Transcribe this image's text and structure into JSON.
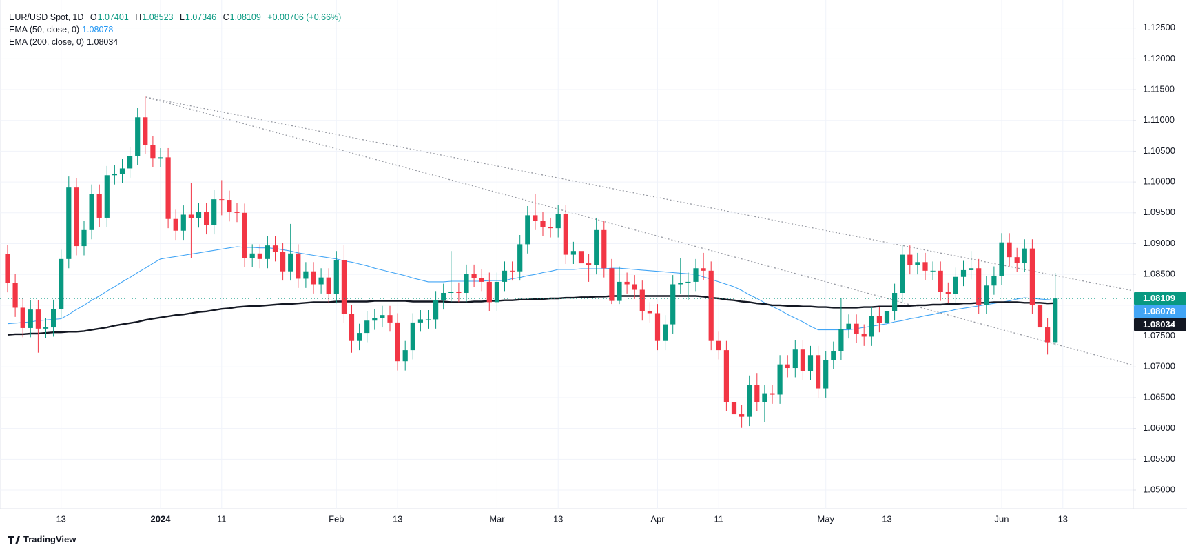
{
  "header": {
    "title": "EUR/USD Spot, 1D",
    "ohlc_keys": [
      "O",
      "H",
      "L",
      "C"
    ],
    "change": "+0.00706 (+0.66%)"
  },
  "footer": {
    "brand": "TradingView"
  },
  "chart_data": {
    "type": "candlestick",
    "up_color": "#089981",
    "down_color": "#f23645",
    "ylim": [
      1.04698,
      1.12955
    ],
    "yticks": [
      {
        "value": 1.05,
        "label": "1.05000"
      },
      {
        "value": 1.055,
        "label": "1.05500"
      },
      {
        "value": 1.06,
        "label": "1.06000"
      },
      {
        "value": 1.065,
        "label": "1.06500"
      },
      {
        "value": 1.07,
        "label": "1.07000"
      },
      {
        "value": 1.075,
        "label": "1.07500"
      },
      {
        "value": 1.08,
        "label": "1.08000"
      },
      {
        "value": 1.085,
        "label": "1.08500"
      },
      {
        "value": 1.09,
        "label": "1.09000"
      },
      {
        "value": 1.095,
        "label": "1.09500"
      },
      {
        "value": 1.1,
        "label": "1.10000"
      },
      {
        "value": 1.105,
        "label": "1.10500"
      },
      {
        "value": 1.11,
        "label": "1.11000"
      },
      {
        "value": 1.115,
        "label": "1.11500"
      },
      {
        "value": 1.12,
        "label": "1.12000"
      },
      {
        "value": 1.125,
        "label": "1.12500"
      }
    ],
    "grid": true,
    "categories": [
      null,
      null,
      null,
      null,
      null,
      null,
      null,
      "13",
      null,
      null,
      null,
      null,
      null,
      null,
      null,
      null,
      null,
      null,
      null,
      null,
      "2024",
      null,
      null,
      null,
      null,
      null,
      null,
      null,
      "11",
      null,
      null,
      null,
      null,
      null,
      null,
      null,
      null,
      null,
      null,
      null,
      null,
      null,
      null,
      "Feb",
      null,
      null,
      null,
      null,
      null,
      null,
      null,
      "13",
      null,
      null,
      null,
      null,
      null,
      null,
      null,
      null,
      null,
      null,
      null,
      null,
      "Mar",
      null,
      null,
      null,
      null,
      null,
      null,
      null,
      "13",
      null,
      null,
      null,
      null,
      null,
      null,
      null,
      null,
      null,
      null,
      null,
      null,
      "Apr",
      null,
      null,
      null,
      null,
      null,
      null,
      null,
      "11",
      null,
      null,
      null,
      null,
      null,
      null,
      null,
      null,
      null,
      null,
      null,
      null,
      null,
      "May",
      null,
      null,
      null,
      null,
      null,
      null,
      null,
      "13",
      null,
      null,
      null,
      null,
      null,
      null,
      null,
      null,
      null,
      null,
      null,
      null,
      null,
      null,
      "Jun",
      null,
      null,
      null,
      null,
      null,
      null,
      null,
      "13"
    ],
    "open": [
      1.0883,
      1.0836,
      1.0796,
      1.0763,
      1.0793,
      1.0762,
      1.0764,
      1.0794,
      1.0875,
      1.0991,
      1.0896,
      1.0922,
      1.0981,
      1.0942,
      1.1011,
      1.1013,
      1.1022,
      1.1042,
      1.1105,
      1.106,
      1.1039,
      1.104,
      1.094,
      1.0921,
      1.0947,
      1.0941,
      1.0951,
      1.093,
      1.0972,
      1.0971,
      1.0951,
      1.095,
      1.0877,
      1.0884,
      1.0875,
      1.0897,
      1.0886,
      1.0855,
      1.0884,
      1.0843,
      1.0855,
      1.0834,
      1.0845,
      1.0818,
      1.0873,
      1.0786,
      1.0742,
      1.0755,
      1.0775,
      1.0779,
      1.0784,
      1.0772,
      1.0709,
      1.0727,
      1.0772,
      1.0777,
      1.0777,
      1.0808,
      1.082,
      1.0822,
      1.082,
      1.0851,
      1.0844,
      1.0838,
      1.0805,
      1.0838,
      1.0856,
      1.0855,
      1.0899,
      1.0946,
      1.0937,
      1.0927,
      1.0925,
      1.0948,
      1.0882,
      1.0888,
      1.0868,
      1.0865,
      1.0922,
      1.086,
      1.0807,
      1.0838,
      1.0834,
      1.0825,
      1.079,
      1.0787,
      1.0742,
      1.0769,
      1.0834,
      1.0836,
      1.0838,
      1.086,
      1.0856,
      1.0742,
      1.0727,
      1.0643,
      1.0623,
      1.0619,
      1.0671,
      1.0643,
      1.0656,
      1.0655,
      1.0704,
      1.0698,
      1.0728,
      1.0693,
      1.0719,
      1.0665,
      1.0711,
      1.0726,
      1.0761,
      1.077,
      1.0754,
      1.0749,
      1.0782,
      1.0771,
      1.079,
      1.082,
      1.0882,
      1.0865,
      1.087,
      1.0856,
      1.0856,
      1.0822,
      1.0818,
      1.0846,
      1.0857,
      1.086,
      1.0801,
      1.0832,
      1.0848,
      1.0902,
      1.0878,
      1.0869,
      1.0892,
      1.0801,
      1.0764,
      1.07401,
      null
    ],
    "high": [
      1.0898,
      1.0851,
      1.0811,
      1.0808,
      1.0808,
      1.0779,
      1.0809,
      1.089,
      1.1009,
      1.1006,
      1.0937,
      1.0996,
      1.0996,
      1.1026,
      1.1028,
      1.1037,
      1.1057,
      1.112,
      1.114,
      1.1075,
      1.1055,
      1.1055,
      1.0955,
      1.0962,
      1.0998,
      1.0966,
      1.0966,
      1.0987,
      1.1003,
      1.0986,
      1.0966,
      1.0965,
      1.0899,
      1.0899,
      1.0912,
      1.0912,
      1.0901,
      1.0932,
      1.0899,
      1.087,
      1.087,
      1.086,
      1.086,
      1.0888,
      1.0898,
      1.0801,
      1.077,
      1.079,
      1.0794,
      1.0799,
      1.0799,
      1.0787,
      1.0742,
      1.0787,
      1.0792,
      1.0792,
      1.0823,
      1.0835,
      1.0888,
      1.0837,
      1.0866,
      1.0866,
      1.0859,
      1.0853,
      1.0853,
      1.0871,
      1.0871,
      1.0914,
      1.0961,
      1.0981,
      1.0952,
      1.0942,
      1.0963,
      1.0963,
      1.0903,
      1.0903,
      1.0883,
      1.0942,
      1.0937,
      1.0875,
      1.0863,
      1.0853,
      1.0849,
      1.084,
      1.0805,
      1.0802,
      1.0784,
      1.0849,
      1.0876,
      1.0853,
      1.0875,
      1.0885,
      1.0871,
      1.0757,
      1.0742,
      1.0658,
      1.0638,
      1.0686,
      1.069,
      1.0671,
      1.0671,
      1.0719,
      1.0719,
      1.0743,
      1.0743,
      1.0734,
      1.0734,
      1.0726,
      1.0741,
      1.0812,
      1.0785,
      1.0785,
      1.0769,
      1.0797,
      1.0797,
      1.0805,
      1.0835,
      1.0897,
      1.0897,
      1.0885,
      1.0885,
      1.0871,
      1.0871,
      1.0837,
      1.0861,
      1.0872,
      1.0888,
      1.0875,
      1.0847,
      1.0863,
      1.0917,
      1.0917,
      1.0893,
      1.0907,
      1.0907,
      1.0816,
      1.0779,
      1.08523,
      null
    ],
    "low": [
      1.0821,
      1.0781,
      1.0748,
      1.0748,
      1.0723,
      1.0747,
      1.0749,
      1.0779,
      1.086,
      1.0881,
      1.0881,
      1.0907,
      1.0927,
      1.0927,
      1.0996,
      1.0998,
      1.1007,
      1.1027,
      1.1045,
      1.1024,
      1.1024,
      1.0925,
      1.0906,
      1.0906,
      1.0877,
      1.0926,
      1.0915,
      1.0915,
      1.0946,
      1.0936,
      1.0935,
      1.0862,
      1.0862,
      1.086,
      1.086,
      1.0871,
      1.084,
      1.084,
      1.0828,
      1.0828,
      1.0819,
      1.0819,
      1.0803,
      1.0803,
      1.0771,
      1.0723,
      1.0727,
      1.074,
      1.076,
      1.0764,
      1.0757,
      1.0694,
      1.0694,
      1.0712,
      1.0757,
      1.0762,
      1.0762,
      1.0793,
      1.0805,
      1.0805,
      1.0805,
      1.0829,
      1.0823,
      1.079,
      1.079,
      1.0823,
      1.084,
      1.084,
      1.0884,
      1.0922,
      1.0912,
      1.091,
      1.091,
      1.0867,
      1.0867,
      1.0853,
      1.0838,
      1.085,
      1.0845,
      1.0802,
      1.0802,
      1.0819,
      1.081,
      1.0775,
      1.0772,
      1.0727,
      1.0727,
      1.0754,
      1.0819,
      1.0808,
      1.0823,
      1.0841,
      1.0727,
      1.0712,
      1.0628,
      1.0608,
      1.0601,
      1.0604,
      1.0628,
      1.061,
      1.064,
      1.064,
      1.0683,
      1.0683,
      1.0678,
      1.0678,
      1.065,
      1.065,
      1.0696,
      1.0711,
      1.0746,
      1.0739,
      1.0734,
      1.0734,
      1.0756,
      1.0756,
      1.0775,
      1.0805,
      1.085,
      1.085,
      1.0841,
      1.0841,
      1.0807,
      1.0803,
      1.0803,
      1.0831,
      1.0842,
      1.0786,
      1.0786,
      1.0817,
      1.0833,
      1.0863,
      1.0854,
      1.0854,
      1.0786,
      1.0749,
      1.072,
      1.07346,
      null
    ],
    "close": [
      1.0836,
      1.0796,
      1.0763,
      1.0793,
      1.0762,
      1.0764,
      1.0794,
      1.0875,
      1.0991,
      1.0896,
      1.0922,
      1.0981,
      1.0942,
      1.1011,
      1.1013,
      1.1022,
      1.1042,
      1.1105,
      1.106,
      1.1039,
      1.104,
      1.094,
      1.0921,
      1.0947,
      1.0941,
      1.0951,
      1.093,
      1.0972,
      1.0971,
      1.0951,
      1.095,
      1.0877,
      1.0884,
      1.0875,
      1.0897,
      1.0886,
      1.0855,
      1.0884,
      1.0843,
      1.0855,
      1.0834,
      1.0845,
      1.0818,
      1.0873,
      1.0786,
      1.0742,
      1.0755,
      1.0775,
      1.0779,
      1.0784,
      1.0772,
      1.0709,
      1.0727,
      1.0772,
      1.0777,
      1.0777,
      1.0808,
      1.082,
      1.0822,
      1.082,
      1.0851,
      1.0844,
      1.0838,
      1.0805,
      1.0838,
      1.0856,
      1.0855,
      1.0899,
      1.0946,
      1.0937,
      1.0927,
      1.0925,
      1.0948,
      1.0882,
      1.0888,
      1.0868,
      1.0865,
      1.0922,
      1.086,
      1.0807,
      1.0838,
      1.0834,
      1.0825,
      1.079,
      1.0787,
      1.0742,
      1.0769,
      1.0834,
      1.0836,
      1.0838,
      1.086,
      1.0856,
      1.0742,
      1.0727,
      1.0643,
      1.0623,
      1.0619,
      1.0671,
      1.0643,
      1.0656,
      1.0655,
      1.0704,
      1.0698,
      1.0728,
      1.0693,
      1.0719,
      1.0665,
      1.0711,
      1.0726,
      1.0761,
      1.077,
      1.0754,
      1.0749,
      1.0782,
      1.0771,
      1.079,
      1.082,
      1.0882,
      1.0865,
      1.087,
      1.0856,
      1.0856,
      1.0822,
      1.0818,
      1.0846,
      1.0857,
      1.086,
      1.0801,
      1.0832,
      1.0848,
      1.0902,
      1.0878,
      1.0869,
      1.0892,
      1.0801,
      1.0764,
      1.074,
      1.08109,
      null
    ],
    "series": [
      {
        "name": "EMA (50, close, 0)",
        "color": "#42a5f5",
        "values": [
          1.077,
          1.0771,
          1.0772,
          1.0773,
          1.0775,
          1.0776,
          1.0777,
          1.0778,
          1.0785,
          1.0793,
          1.08,
          1.0808,
          1.0815,
          1.0823,
          1.083,
          1.0838,
          1.0845,
          1.0853,
          1.086,
          1.0868,
          1.0875,
          1.0877,
          1.0879,
          1.0881,
          1.0883,
          1.0885,
          1.0887,
          1.0889,
          1.0891,
          1.0893,
          1.0895,
          1.0894,
          1.0894,
          1.0893,
          1.0893,
          1.0892,
          1.089,
          1.0888,
          1.0885,
          1.0883,
          1.0881,
          1.0879,
          1.0877,
          1.0875,
          1.0872,
          1.087,
          1.0867,
          1.0864,
          1.086,
          1.0857,
          1.0854,
          1.0851,
          1.0848,
          1.0844,
          1.0841,
          1.0838,
          1.0838,
          1.0838,
          1.0839,
          1.0839,
          1.0839,
          1.0839,
          1.0839,
          1.084,
          1.084,
          1.084,
          1.0843,
          1.0845,
          1.0848,
          1.085,
          1.0853,
          1.0855,
          1.0858,
          1.0858,
          1.0858,
          1.0859,
          1.0859,
          1.0859,
          1.0859,
          1.086,
          1.086,
          1.0859,
          1.0858,
          1.0857,
          1.0856,
          1.0855,
          1.0854,
          1.0853,
          1.0852,
          1.0851,
          1.085,
          1.0846,
          1.0842,
          1.0838,
          1.0834,
          1.083,
          1.0824,
          1.0817,
          1.0811,
          1.0804,
          1.0798,
          1.0792,
          1.0785,
          1.0779,
          1.0773,
          1.0766,
          1.076,
          1.076,
          1.076,
          1.076,
          1.076,
          1.0762,
          1.0764,
          1.0766,
          1.0768,
          1.077,
          1.0773,
          1.0775,
          1.0778,
          1.078,
          1.0783,
          1.0785,
          1.0788,
          1.079,
          1.0793,
          1.0795,
          1.0797,
          1.0799,
          1.0801,
          1.0803,
          1.0805,
          1.0807,
          1.081,
          1.0812,
          1.0811,
          1.081,
          1.0809,
          1.08078,
          null
        ]
      },
      {
        "name": "EMA (200, close, 0)",
        "color": "#131722",
        "values": [
          1.0752,
          1.0753,
          1.0753,
          1.0754,
          1.0754,
          1.0755,
          1.0756,
          1.0756,
          1.0757,
          1.0757,
          1.0758,
          1.076,
          1.0762,
          1.0764,
          1.0767,
          1.0769,
          1.0771,
          1.0773,
          1.0776,
          1.0778,
          1.078,
          1.0782,
          1.0784,
          1.0785,
          1.0787,
          1.0789,
          1.079,
          1.0792,
          1.0794,
          1.0795,
          1.0797,
          1.0798,
          1.0799,
          1.0799,
          1.08,
          1.0801,
          1.0802,
          1.0802,
          1.0803,
          1.0804,
          1.0805,
          1.0805,
          1.0805,
          1.0806,
          1.0806,
          1.0806,
          1.0806,
          1.0806,
          1.0807,
          1.0807,
          1.0807,
          1.0807,
          1.0807,
          1.0806,
          1.0806,
          1.0806,
          1.0806,
          1.0806,
          1.0805,
          1.0805,
          1.0805,
          1.0806,
          1.0806,
          1.0807,
          1.0807,
          1.0808,
          1.0808,
          1.0809,
          1.0809,
          1.081,
          1.081,
          1.0811,
          1.0811,
          1.0812,
          1.0812,
          1.0813,
          1.0813,
          1.0814,
          1.0814,
          1.0815,
          1.0815,
          1.0815,
          1.0815,
          1.0815,
          1.0815,
          1.0815,
          1.0815,
          1.0815,
          1.0815,
          1.0815,
          1.0815,
          1.0814,
          1.0812,
          1.0811,
          1.0809,
          1.0808,
          1.0806,
          1.0805,
          1.0803,
          1.0802,
          1.08,
          1.08,
          1.0799,
          1.0799,
          1.0798,
          1.0798,
          1.0797,
          1.0797,
          1.0796,
          1.0796,
          1.0796,
          1.0796,
          1.0797,
          1.0797,
          1.0798,
          1.0798,
          1.0798,
          1.0799,
          1.0799,
          1.08,
          1.08,
          1.0801,
          1.0801,
          1.0802,
          1.0802,
          1.0803,
          1.0803,
          1.0804,
          1.0804,
          1.0805,
          1.0805,
          1.0805,
          1.0805,
          1.0804,
          1.0804,
          1.0804,
          1.0803,
          1.08034,
          null
        ]
      }
    ]
  }
}
